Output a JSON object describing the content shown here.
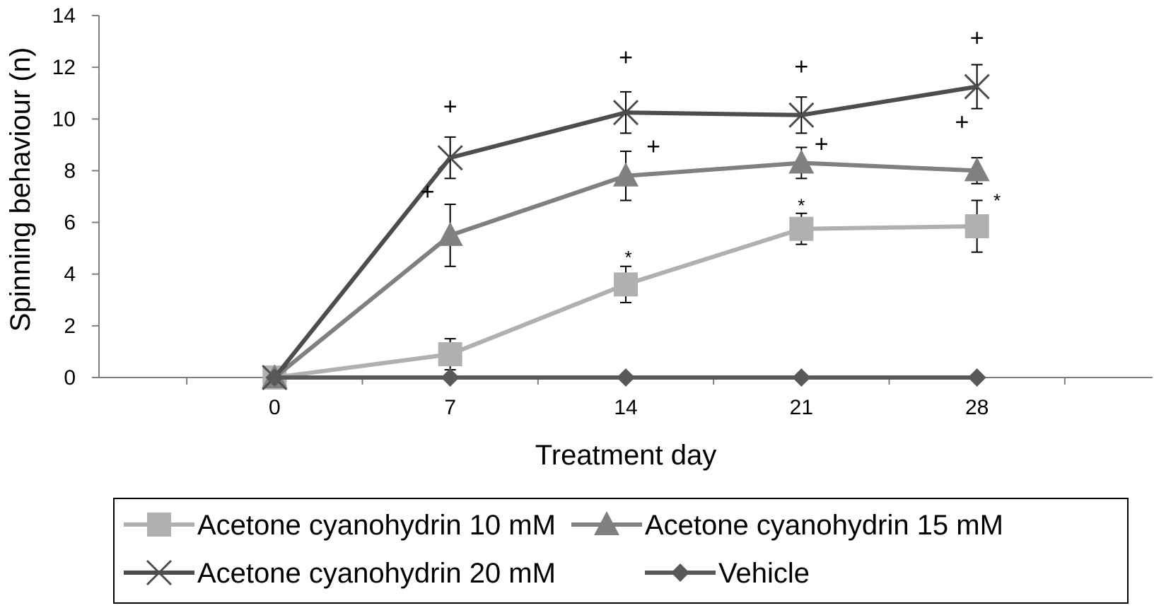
{
  "chart_data": {
    "type": "line",
    "title": "",
    "xlabel": "Treatment day",
    "ylabel": "Spinning behaviour (n)",
    "x": [
      0,
      7,
      14,
      21,
      28
    ],
    "x_tick_labels": [
      "0",
      "7",
      "14",
      "21",
      "28"
    ],
    "xlim": [
      -7,
      35
    ],
    "ylim": [
      0,
      14
    ],
    "y_ticks": [
      0,
      2,
      4,
      6,
      8,
      10,
      12,
      14
    ],
    "y_tick_labels": [
      "0",
      "2",
      "4",
      "6",
      "8",
      "10",
      "12",
      "14"
    ],
    "grid": false,
    "legend_position": "bottom",
    "series": [
      {
        "name": "Acetone cyanohydrin 10 mM",
        "values": [
          0,
          0.9,
          3.6,
          5.75,
          5.85
        ],
        "error": [
          0,
          0.6,
          0.7,
          0.6,
          1.0
        ],
        "marker": "square",
        "color": "#b0b0b0"
      },
      {
        "name": "Acetone cyanohydrin 15 mM",
        "values": [
          0,
          5.5,
          7.8,
          8.3,
          8.0
        ],
        "error": [
          0,
          1.2,
          0.95,
          0.6,
          0.5
        ],
        "marker": "triangle",
        "color": "#808080"
      },
      {
        "name": "Acetone cyanohydrin 20 mM",
        "values": [
          0,
          8.5,
          10.25,
          10.15,
          11.25
        ],
        "error": [
          0,
          0.8,
          0.8,
          0.7,
          0.85
        ],
        "marker": "x",
        "color": "#4d4d4d"
      },
      {
        "name": "Vehicle",
        "values": [
          0,
          0,
          0,
          0,
          0
        ],
        "error": [
          0,
          0,
          0,
          0,
          0
        ],
        "marker": "diamond",
        "color": "#595959"
      }
    ],
    "annotations": [
      {
        "text": "+",
        "x": 7,
        "y": 10.5
      },
      {
        "text": "+",
        "x": 14,
        "y": 12.4
      },
      {
        "text": "+",
        "x": 21,
        "y": 12.05
      },
      {
        "text": "+",
        "x": 28,
        "y": 13.15
      },
      {
        "text": "+",
        "x": 6.1,
        "y": 7.2
      },
      {
        "text": "+",
        "x": 15.1,
        "y": 8.95
      },
      {
        "text": "+",
        "x": 21.8,
        "y": 9.05
      },
      {
        "text": "+",
        "x": 27.4,
        "y": 9.9
      },
      {
        "text": "*",
        "x": 14.1,
        "y": 4.9
      },
      {
        "text": "*",
        "x": 21.0,
        "y": 6.9
      },
      {
        "text": "*",
        "x": 28.8,
        "y": 7.1
      }
    ]
  }
}
